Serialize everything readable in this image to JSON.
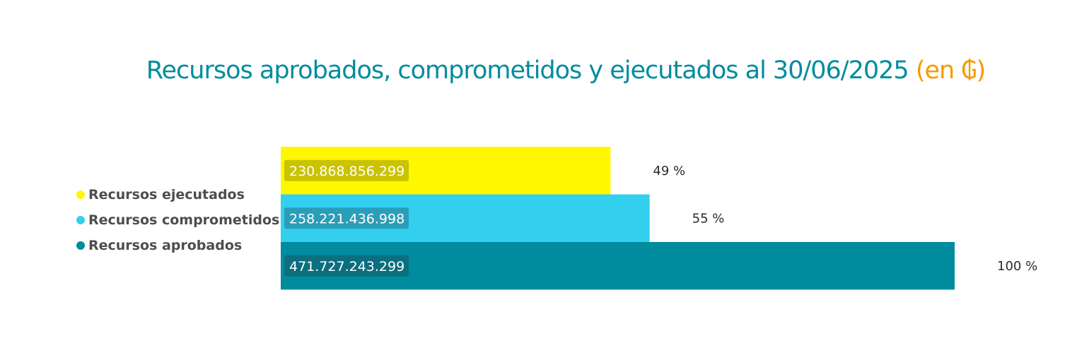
{
  "title": {
    "main": "Recursos aprobados, comprometidos y ejecutados al 30/06/2025",
    "accent": "(en ₲)"
  },
  "colors": {
    "title": "#008c9e",
    "accent": "#f59a00",
    "ejecutados": "#fff700",
    "comprometidos": "#33cfef",
    "aprobados": "#008c9e"
  },
  "legend": [
    {
      "label": "Recursos ejecutados",
      "color": "#fff700"
    },
    {
      "label": "Recursos comprometidos",
      "color": "#33cfef"
    },
    {
      "label": "Recursos aprobados",
      "color": "#008c9e"
    }
  ],
  "chart_data": {
    "type": "bar",
    "orientation": "horizontal",
    "title": "Recursos aprobados, comprometidos y ejecutados al 30/06/2025 (en ₲)",
    "legend_position": "left",
    "grid": false,
    "xlim": [
      0,
      471727243299
    ],
    "series": [
      {
        "name": "Recursos ejecutados",
        "value": 230868856299,
        "value_label": "230.868.856.299",
        "percent_label": "49 %",
        "color": "#fff700",
        "label_bg": "#c9c300"
      },
      {
        "name": "Recursos comprometidos",
        "value": 258221436998,
        "value_label": "258.221.436.998",
        "percent_label": "55 %",
        "color": "#33cfef",
        "label_bg": "#2a9db8"
      },
      {
        "name": "Recursos aprobados",
        "value": 471727243299,
        "value_label": "471.727.243.299",
        "percent_label": "100 %",
        "color": "#008c9e",
        "label_bg": "#0a6f7e"
      }
    ]
  }
}
